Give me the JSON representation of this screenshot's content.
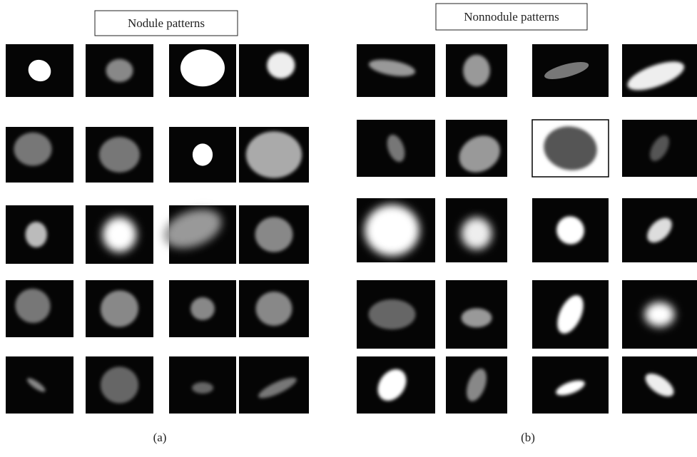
{
  "panels": [
    {
      "title": "Nodule patterns",
      "caption": "(a)"
    },
    {
      "title": "Nonnodule patterns",
      "caption": "(b)"
    }
  ]
}
